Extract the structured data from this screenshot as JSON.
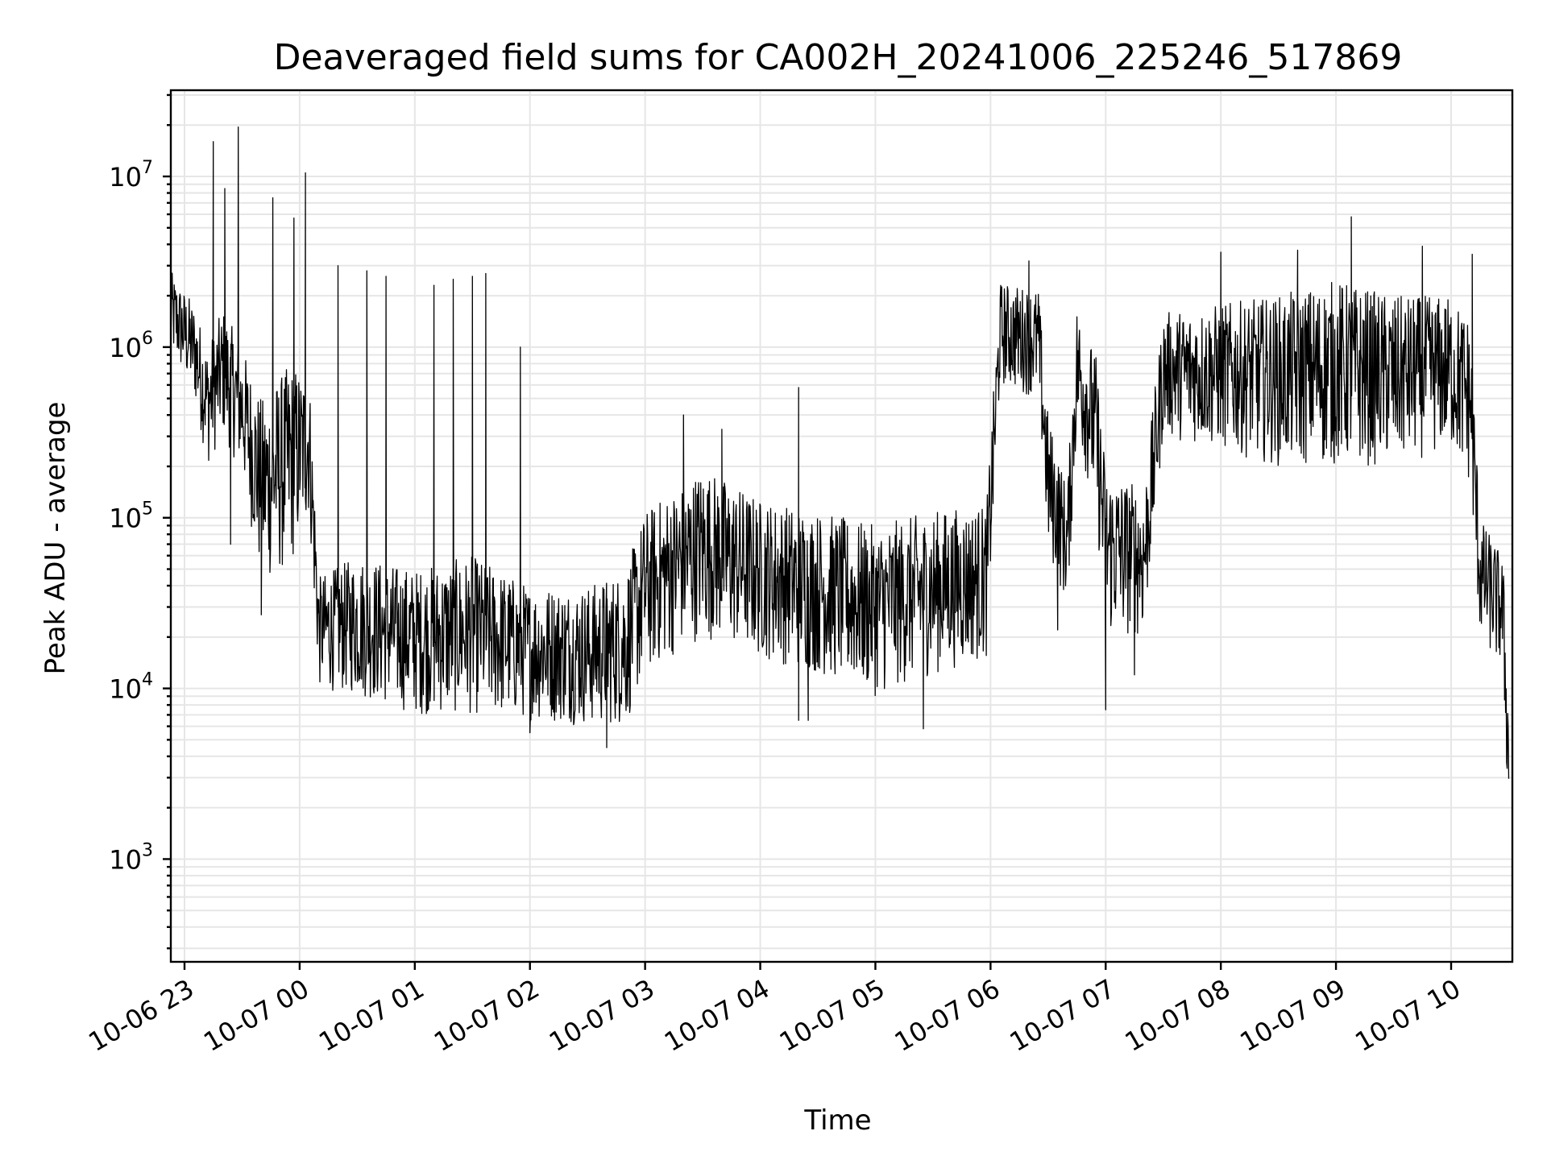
{
  "chart_data": {
    "type": "line",
    "title": "Deaveraged field sums for CA002H_20241006_225246_517869",
    "xlabel": "Time",
    "ylabel": "Peak ADU - average",
    "yscale": "log",
    "ylim": [
      250,
      32000000
    ],
    "xlim": [
      "2024-10-06T22:52:46",
      "2024-10-07T10:30:00"
    ],
    "grid": "on (major and minor)",
    "legend": "none",
    "line_color": "#000000",
    "x_ticks": [
      {
        "t": "2024-10-06T23:00",
        "label": "10-06 23"
      },
      {
        "t": "2024-10-07T00:00",
        "label": "10-07 00"
      },
      {
        "t": "2024-10-07T01:00",
        "label": "10-07 01"
      },
      {
        "t": "2024-10-07T02:00",
        "label": "10-07 02"
      },
      {
        "t": "2024-10-07T03:00",
        "label": "10-07 03"
      },
      {
        "t": "2024-10-07T04:00",
        "label": "10-07 04"
      },
      {
        "t": "2024-10-07T05:00",
        "label": "10-07 05"
      },
      {
        "t": "2024-10-07T06:00",
        "label": "10-07 06"
      },
      {
        "t": "2024-10-07T07:00",
        "label": "10-07 07"
      },
      {
        "t": "2024-10-07T08:00",
        "label": "10-07 08"
      },
      {
        "t": "2024-10-07T09:00",
        "label": "10-07 09"
      },
      {
        "t": "2024-10-07T10:00",
        "label": "10-07 10"
      }
    ],
    "y_ticks": [
      {
        "value": 1000,
        "base": "10",
        "exp": "3"
      },
      {
        "value": 10000,
        "base": "10",
        "exp": "4"
      },
      {
        "value": 100000,
        "base": "10",
        "exp": "5"
      },
      {
        "value": 1000000,
        "base": "10",
        "exp": "6"
      },
      {
        "value": 10000000,
        "base": "10",
        "exp": "7"
      }
    ],
    "series": [
      {
        "envelope": [
          {
            "t": "2024-10-06T22:52:46",
            "low": 900000,
            "high": 2800000
          },
          {
            "t": "2024-10-06T23:05",
            "low": 500000,
            "high": 1800000
          },
          {
            "t": "2024-10-06T23:12",
            "low": 200000,
            "high": 1000000
          },
          {
            "t": "2024-10-06T23:20",
            "low": 300000,
            "high": 1700000
          },
          {
            "t": "2024-10-06T23:30",
            "low": 180000,
            "high": 1000000
          },
          {
            "t": "2024-10-06T23:40",
            "low": 40000,
            "high": 500000
          },
          {
            "t": "2024-10-06T23:55",
            "low": 50000,
            "high": 800000
          },
          {
            "t": "2024-10-07T00:05",
            "low": 100000,
            "high": 700000
          },
          {
            "t": "2024-10-07T00:10",
            "low": 10000,
            "high": 45000
          },
          {
            "t": "2024-10-07T00:30",
            "low": 9000,
            "high": 60000
          },
          {
            "t": "2024-10-07T01:00",
            "low": 7000,
            "high": 50000
          },
          {
            "t": "2024-10-07T01:30",
            "low": 7000,
            "high": 60000
          },
          {
            "t": "2024-10-07T02:00",
            "low": 6500,
            "high": 40000
          },
          {
            "t": "2024-10-07T02:30",
            "low": 6000,
            "high": 40000
          },
          {
            "t": "2024-10-07T02:50",
            "low": 6000,
            "high": 50000
          },
          {
            "t": "2024-10-07T03:00",
            "low": 12000,
            "high": 110000
          },
          {
            "t": "2024-10-07T03:30",
            "low": 20000,
            "high": 200000
          },
          {
            "t": "2024-10-07T04:00",
            "low": 15000,
            "high": 130000
          },
          {
            "t": "2024-10-07T04:30",
            "low": 12000,
            "high": 110000
          },
          {
            "t": "2024-10-07T05:00",
            "low": 9000,
            "high": 90000
          },
          {
            "t": "2024-10-07T05:30",
            "low": 12000,
            "high": 110000
          },
          {
            "t": "2024-10-07T05:58",
            "low": 15000,
            "high": 120000
          },
          {
            "t": "2024-10-07T06:05",
            "low": 600000,
            "high": 2400000
          },
          {
            "t": "2024-10-07T06:25",
            "low": 500000,
            "high": 2200000
          },
          {
            "t": "2024-10-07T06:30",
            "low": 60000,
            "high": 400000
          },
          {
            "t": "2024-10-07T06:40",
            "low": 30000,
            "high": 150000
          },
          {
            "t": "2024-10-07T06:45",
            "low": 300000,
            "high": 1800000
          },
          {
            "t": "2024-10-07T06:55",
            "low": 100000,
            "high": 900000
          },
          {
            "t": "2024-10-07T07:00",
            "low": 20000,
            "high": 200000
          },
          {
            "t": "2024-10-07T07:20",
            "low": 20000,
            "high": 150000
          },
          {
            "t": "2024-10-07T07:30",
            "low": 300000,
            "high": 1600000
          },
          {
            "t": "2024-10-07T08:00",
            "low": 250000,
            "high": 1800000
          },
          {
            "t": "2024-10-07T08:30",
            "low": 200000,
            "high": 2000000
          },
          {
            "t": "2024-10-07T09:00",
            "low": 200000,
            "high": 2500000
          },
          {
            "t": "2024-10-07T09:30",
            "low": 200000,
            "high": 2000000
          },
          {
            "t": "2024-10-07T10:00",
            "low": 250000,
            "high": 2000000
          },
          {
            "t": "2024-10-07T10:10",
            "low": 150000,
            "high": 1500000
          },
          {
            "t": "2024-10-07T10:15",
            "low": 20000,
            "high": 100000
          },
          {
            "t": "2024-10-07T10:27",
            "low": 12000,
            "high": 60000
          },
          {
            "t": "2024-10-07T10:30",
            "low": 1500,
            "high": 8000
          }
        ],
        "spikes": [
          {
            "t": "2024-10-06T23:15",
            "value": 16000000
          },
          {
            "t": "2024-10-06T23:21",
            "value": 8500000
          },
          {
            "t": "2024-10-06T23:24",
            "value": 70000
          },
          {
            "t": "2024-10-06T23:28",
            "value": 19500000
          },
          {
            "t": "2024-10-06T23:40",
            "value": 27000
          },
          {
            "t": "2024-10-06T23:46",
            "value": 7500000
          },
          {
            "t": "2024-10-06T23:57",
            "value": 5700000
          },
          {
            "t": "2024-10-07T00:03",
            "value": 10500000
          },
          {
            "t": "2024-10-07T00:20",
            "value": 3000000
          },
          {
            "t": "2024-10-07T00:35",
            "value": 2800000
          },
          {
            "t": "2024-10-07T00:45",
            "value": 2600000
          },
          {
            "t": "2024-10-07T01:10",
            "value": 2300000
          },
          {
            "t": "2024-10-07T01:20",
            "value": 2500000
          },
          {
            "t": "2024-10-07T01:30",
            "value": 2600000
          },
          {
            "t": "2024-10-07T01:37",
            "value": 2700000
          },
          {
            "t": "2024-10-07T01:55",
            "value": 1000000
          },
          {
            "t": "2024-10-07T02:00",
            "value": 5500
          },
          {
            "t": "2024-10-07T02:40",
            "value": 4500
          },
          {
            "t": "2024-10-07T03:20",
            "value": 400000
          },
          {
            "t": "2024-10-07T03:40",
            "value": 330000
          },
          {
            "t": "2024-10-07T04:20",
            "value": 580000
          },
          {
            "t": "2024-10-07T04:20",
            "value": 6500
          },
          {
            "t": "2024-10-07T04:25",
            "value": 6500
          },
          {
            "t": "2024-10-07T05:25",
            "value": 5800
          },
          {
            "t": "2024-10-07T06:20",
            "value": 3200000
          },
          {
            "t": "2024-10-07T06:35",
            "value": 22000
          },
          {
            "t": "2024-10-07T07:00",
            "value": 7500
          },
          {
            "t": "2024-10-07T07:15",
            "value": 12000
          },
          {
            "t": "2024-10-07T08:00",
            "value": 3600000
          },
          {
            "t": "2024-10-07T08:40",
            "value": 3700000
          },
          {
            "t": "2024-10-07T09:08",
            "value": 5800000
          },
          {
            "t": "2024-10-07T09:45",
            "value": 3900000
          },
          {
            "t": "2024-10-07T10:11",
            "value": 3500000
          }
        ]
      }
    ]
  }
}
